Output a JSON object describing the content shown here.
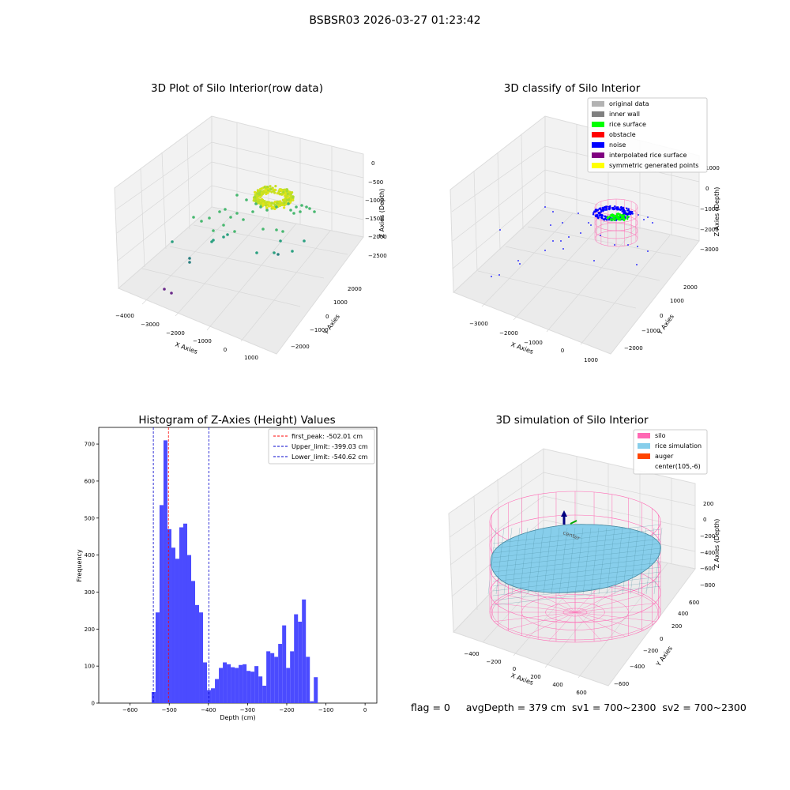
{
  "suptitle": "BSBSR03 2026-03-27 01:23:42",
  "footer": "flag = 0     avgDepth = 379 cm  sv1 = 700~2300  sv2 = 700~2300",
  "colors": {
    "bar": "#4b4bff",
    "peak": "#ff0000",
    "limit": "#0000cc",
    "gray_light": "#b3b3b3",
    "gray": "#808080",
    "rice": "#00ff00",
    "obstacle": "#ff0000",
    "noise": "#0000ff",
    "interp": "#800080",
    "sym": "#ffff00",
    "silo": "#ff69b4",
    "rice_sim": "#87ceeb",
    "auger": "#ff4500"
  },
  "panel_raw": {
    "title": "3D Plot of Silo Interior(row data)",
    "xlabel": "X Axies",
    "ylabel": "Y Axies",
    "zlabel": "Z Axies (Depth)",
    "xticks": [
      "−4000",
      "−3000",
      "−2000",
      "−1000",
      "0",
      "1000"
    ],
    "yticks": [
      "−2000",
      "−1000",
      "0",
      "1000",
      "2000"
    ],
    "zticks": [
      "0",
      "−500",
      "−1000",
      "−1500",
      "−2000",
      "−2500"
    ]
  },
  "panel_classify": {
    "title": "3D classify of Silo Interior",
    "xlabel": "X Axies",
    "ylabel": "Y Axies",
    "zlabel": "Z Axies (Depth)",
    "xticks": [
      "−3000",
      "−2000",
      "−1000",
      "0",
      "1000"
    ],
    "yticks": [
      "−2000",
      "−1000",
      "0",
      "1000",
      "2000"
    ],
    "zticks": [
      "1000",
      "0",
      "−1000",
      "−2000",
      "−3000"
    ],
    "legend": [
      {
        "label": "original data",
        "color": "#b3b3b3"
      },
      {
        "label": "inner wall",
        "color": "#808080"
      },
      {
        "label": "rice surface",
        "color": "#00ff00"
      },
      {
        "label": "obstacle",
        "color": "#ff0000"
      },
      {
        "label": "noise",
        "color": "#0000ff"
      },
      {
        "label": "interpolated rice surface",
        "color": "#800080"
      },
      {
        "label": "symmetric generated points",
        "color": "#ffff00"
      }
    ]
  },
  "panel_sim": {
    "title": "3D simulation of Silo Interior",
    "xlabel": "X Axies",
    "ylabel": "Y Axies",
    "zlabel": "Z Axies (Depth)",
    "xticks": [
      "−400",
      "−200",
      "0",
      "200",
      "400",
      "600"
    ],
    "yticks": [
      "−600",
      "−400",
      "−200",
      "0",
      "200",
      "400",
      "600"
    ],
    "zticks": [
      "200",
      "0",
      "−200",
      "−400",
      "−600",
      "−800"
    ],
    "legend": [
      {
        "label": "silo",
        "color": "#ff69b4"
      },
      {
        "label": "rice simulation",
        "color": "#87ceeb"
      },
      {
        "label": "auger",
        "color": "#ff4500"
      },
      {
        "label": "center(105,-6)",
        "color": ""
      }
    ],
    "center_tag": "center"
  },
  "chart_data": {
    "type": "bar",
    "title": "Histogram of Z-Axies (Height) Values",
    "xlabel": "Depth (cm)",
    "ylabel": "Frequency",
    "xlim": [
      -680,
      30
    ],
    "ylim": [
      0,
      745
    ],
    "xticks": [
      -600,
      -500,
      -400,
      -300,
      -200,
      -100,
      0
    ],
    "yticks": [
      0,
      100,
      200,
      300,
      400,
      500,
      600,
      700
    ],
    "bin_start": -545,
    "bin_width": 10.1,
    "values": [
      30,
      245,
      535,
      710,
      470,
      420,
      390,
      475,
      485,
      400,
      330,
      265,
      245,
      110,
      35,
      40,
      65,
      95,
      110,
      105,
      97,
      95,
      103,
      105,
      87,
      85,
      100,
      72,
      47,
      140,
      135,
      125,
      160,
      210,
      95,
      140,
      240,
      220,
      280,
      125,
      5,
      70
    ],
    "lines": [
      {
        "label": "first_peak: -502.01 cm",
        "x": -502.01,
        "color": "#ff0000"
      },
      {
        "label": "Upper_limit: -399.03 cm",
        "x": -399.03,
        "color": "#0000cc"
      },
      {
        "label": "Lower_limit: -540.62 cm",
        "x": -540.62,
        "color": "#0000cc"
      }
    ],
    "legend_position": "upper right"
  }
}
